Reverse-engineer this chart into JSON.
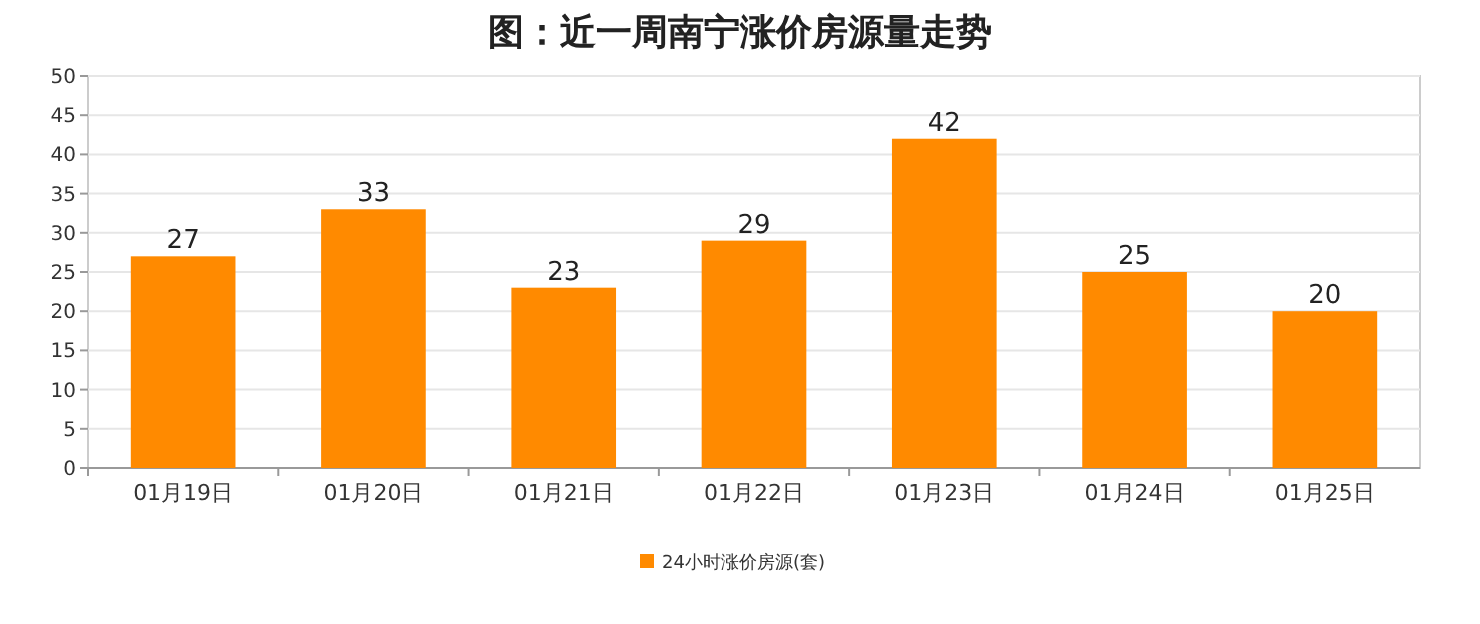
{
  "chart_data": {
    "type": "bar",
    "title": "图：近一周南宁涨价房源量走势",
    "categories": [
      "01月19日",
      "01月20日",
      "01月21日",
      "01月22日",
      "01月23日",
      "01月24日",
      "01月25日"
    ],
    "series": [
      {
        "name": "24小时涨价房源(套)",
        "color": "#ff8a00",
        "values": [
          27,
          33,
          23,
          29,
          42,
          25,
          20
        ]
      }
    ],
    "ylim": [
      0,
      50
    ],
    "yticks": [
      0,
      5,
      10,
      15,
      20,
      25,
      30,
      35,
      40,
      45,
      50
    ],
    "grid": "y",
    "legend": "bottom",
    "data_labels": true
  }
}
